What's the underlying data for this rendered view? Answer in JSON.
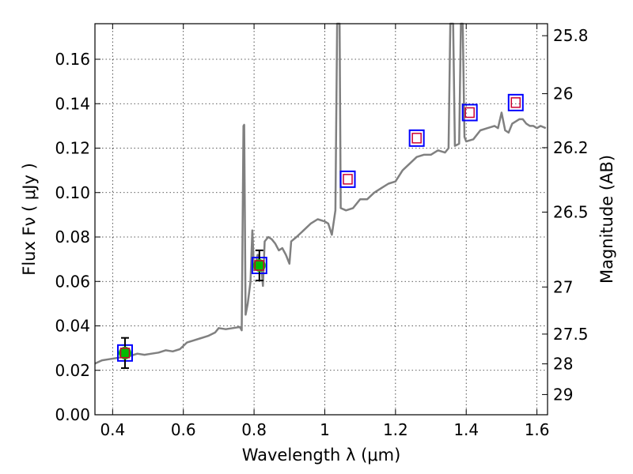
{
  "chart_data": {
    "type": "line",
    "title": "",
    "xlabel": "Wavelength  λ (μm)",
    "ylabel": "Flux  Fν  ( μJy )",
    "ylabel_right": "Magnitude (AB)",
    "xlim": [
      0.35,
      1.63
    ],
    "ylim": [
      0.0,
      0.176
    ],
    "grid": true,
    "colors": {
      "spectrum": "#808080",
      "observed": "#00bb00",
      "box_outer": "#0000ff",
      "box_inner": "#cc0033",
      "errorbar": "#000000"
    },
    "xticks": [
      {
        "value": 0.4,
        "label": "0.4"
      },
      {
        "value": 0.6,
        "label": "0.6"
      },
      {
        "value": 0.8,
        "label": "0.8"
      },
      {
        "value": 1.0,
        "label": "1"
      },
      {
        "value": 1.2,
        "label": "1.2"
      },
      {
        "value": 1.4,
        "label": "1.4"
      },
      {
        "value": 1.6,
        "label": "1.6"
      }
    ],
    "yticks": [
      {
        "value": 0.0,
        "label": "0.00"
      },
      {
        "value": 0.02,
        "label": "0.02"
      },
      {
        "value": 0.04,
        "label": "0.04"
      },
      {
        "value": 0.06,
        "label": "0.06"
      },
      {
        "value": 0.08,
        "label": "0.08"
      },
      {
        "value": 0.1,
        "label": "0.10"
      },
      {
        "value": 0.12,
        "label": "0.12"
      },
      {
        "value": 0.14,
        "label": "0.14"
      },
      {
        "value": 0.16,
        "label": "0.16"
      }
    ],
    "right_ticks": [
      {
        "label": "25.8",
        "flux": 0.1706
      },
      {
        "label": "26",
        "flux": 0.1445
      },
      {
        "label": "26.2",
        "flux": 0.1202
      },
      {
        "label": "26.5",
        "flux": 0.0912
      },
      {
        "label": "27",
        "flux": 0.0575
      },
      {
        "label": "27.5",
        "flux": 0.0363
      },
      {
        "label": "28",
        "flux": 0.0229
      },
      {
        "label": "29",
        "flux": 0.0091
      }
    ],
    "series": [
      {
        "kind": "spectrum",
        "points": [
          [
            0.35,
            0.023
          ],
          [
            0.37,
            0.0245
          ],
          [
            0.39,
            0.025
          ],
          [
            0.41,
            0.0255
          ],
          [
            0.43,
            0.026
          ],
          [
            0.45,
            0.0265
          ],
          [
            0.47,
            0.0275
          ],
          [
            0.49,
            0.027
          ],
          [
            0.51,
            0.0275
          ],
          [
            0.53,
            0.028
          ],
          [
            0.55,
            0.029
          ],
          [
            0.57,
            0.0285
          ],
          [
            0.59,
            0.0295
          ],
          [
            0.61,
            0.0325
          ],
          [
            0.63,
            0.0335
          ],
          [
            0.65,
            0.0345
          ],
          [
            0.67,
            0.0355
          ],
          [
            0.69,
            0.037
          ],
          [
            0.7,
            0.039
          ],
          [
            0.72,
            0.0385
          ],
          [
            0.74,
            0.039
          ],
          [
            0.76,
            0.0395
          ],
          [
            0.765,
            0.038
          ],
          [
            0.77,
            0.13
          ],
          [
            0.772,
            0.1305
          ],
          [
            0.776,
            0.045
          ],
          [
            0.782,
            0.05
          ],
          [
            0.79,
            0.06
          ],
          [
            0.795,
            0.083
          ],
          [
            0.8,
            0.065
          ],
          [
            0.81,
            0.072
          ],
          [
            0.82,
            0.068
          ],
          [
            0.825,
            0.058
          ],
          [
            0.83,
            0.078
          ],
          [
            0.84,
            0.08
          ],
          [
            0.85,
            0.079
          ],
          [
            0.86,
            0.077
          ],
          [
            0.87,
            0.074
          ],
          [
            0.88,
            0.075
          ],
          [
            0.89,
            0.072
          ],
          [
            0.9,
            0.068
          ],
          [
            0.905,
            0.078
          ],
          [
            0.92,
            0.08
          ],
          [
            0.94,
            0.083
          ],
          [
            0.96,
            0.086
          ],
          [
            0.98,
            0.088
          ],
          [
            1.0,
            0.087
          ],
          [
            1.01,
            0.086
          ],
          [
            1.02,
            0.081
          ],
          [
            1.03,
            0.092
          ],
          [
            1.035,
            0.176
          ],
          [
            1.042,
            0.176
          ],
          [
            1.045,
            0.093
          ],
          [
            1.06,
            0.092
          ],
          [
            1.08,
            0.093
          ],
          [
            1.1,
            0.097
          ],
          [
            1.12,
            0.097
          ],
          [
            1.14,
            0.1
          ],
          [
            1.16,
            0.102
          ],
          [
            1.18,
            0.104
          ],
          [
            1.2,
            0.105
          ],
          [
            1.22,
            0.11
          ],
          [
            1.24,
            0.113
          ],
          [
            1.26,
            0.116
          ],
          [
            1.28,
            0.117
          ],
          [
            1.3,
            0.117
          ],
          [
            1.32,
            0.119
          ],
          [
            1.34,
            0.118
          ],
          [
            1.35,
            0.12
          ],
          [
            1.355,
            0.176
          ],
          [
            1.363,
            0.176
          ],
          [
            1.368,
            0.121
          ],
          [
            1.38,
            0.122
          ],
          [
            1.385,
            0.176
          ],
          [
            1.39,
            0.176
          ],
          [
            1.395,
            0.125
          ],
          [
            1.4,
            0.123
          ],
          [
            1.42,
            0.124
          ],
          [
            1.44,
            0.128
          ],
          [
            1.46,
            0.129
          ],
          [
            1.48,
            0.13
          ],
          [
            1.49,
            0.129
          ],
          [
            1.5,
            0.136
          ],
          [
            1.51,
            0.128
          ],
          [
            1.52,
            0.127
          ],
          [
            1.53,
            0.131
          ],
          [
            1.55,
            0.133
          ],
          [
            1.56,
            0.133
          ],
          [
            1.57,
            0.131
          ],
          [
            1.58,
            0.13
          ],
          [
            1.59,
            0.13
          ],
          [
            1.6,
            0.129
          ],
          [
            1.61,
            0.13
          ],
          [
            1.625,
            0.129
          ]
        ]
      }
    ],
    "observed_points": [
      {
        "x": 0.435,
        "y": 0.0278,
        "yerr": 0.0068
      },
      {
        "x": 0.815,
        "y": 0.0672,
        "yerr": 0.0068
      }
    ],
    "model_points": [
      {
        "x": 0.435,
        "y": 0.0278
      },
      {
        "x": 0.815,
        "y": 0.0672
      },
      {
        "x": 1.065,
        "y": 0.106
      },
      {
        "x": 1.26,
        "y": 0.1245
      },
      {
        "x": 1.41,
        "y": 0.136
      },
      {
        "x": 1.54,
        "y": 0.1405
      }
    ]
  }
}
